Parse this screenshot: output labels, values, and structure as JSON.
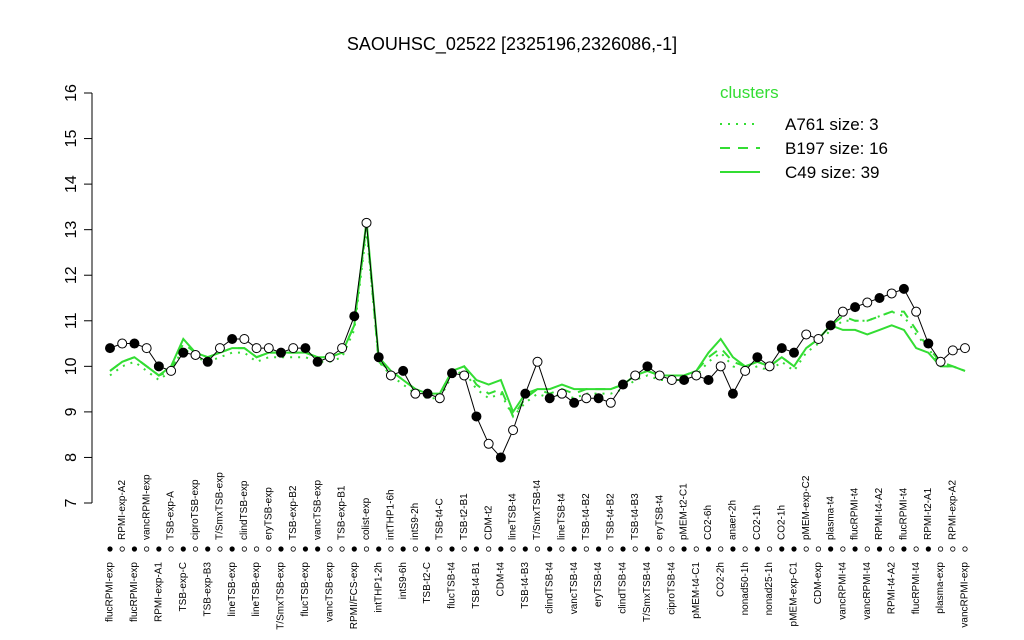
{
  "chart_data": {
    "type": "line",
    "title": "SAOUHSC_02522 [2325196,2326086,-1]",
    "categories": [
      "flucRPMI-exp",
      "RPMI-exp-A2",
      "flucRPMI-exp",
      "vancRPMI-exp",
      "RPMI-exp-A1",
      "TSB-exp-A",
      "TSB-exp-C",
      "ciproTSB-exp",
      "TSB-exp-B3",
      "T/SmxTSB-exp",
      "lineTSB-exp",
      "clindTSB-exp",
      "lineTSB-exp",
      "eryTSB-exp",
      "T/SmxTSB-exp",
      "TSB-exp-B2",
      "flucTSB-exp",
      "vancTSB-exp",
      "vancTSB-exp",
      "TSB-exp-B1",
      "RPMI/FCS-exp",
      "colist-exp",
      "intTHP1-2h",
      "intTHP1-6h",
      "intS9-6h",
      "intS9-2h",
      "TSB-t2-C",
      "TSB-t4-C",
      "flucTSB-t4",
      "TSB-t2-B1",
      "TSB-t4-B1",
      "CDM-t2",
      "CDM-t4",
      "lineTSB-t4",
      "TSB-t4-B3",
      "T/SmxTSB-t4",
      "clindTSB-t4",
      "lineTSB-t4",
      "vancTSB-t4",
      "TSB-t4-B2",
      "eryTSB-t4",
      "TSB-t4-B2",
      "clindTSB-t4",
      "TSB-t4-B3",
      "T/SmxTSB-t4",
      "eryTSB-t4",
      "ciproTSB-t4",
      "pMEM-t2-C1",
      "pMEM-t4-C1",
      "CO2-6h",
      "CO2-2h",
      "anaer-2h",
      "nonad50-1h",
      "CO2-1h",
      "nonad25-1h",
      "CO2-1h",
      "pMEM-exp-C1",
      "pMEM-exp-C2",
      "CDM-exp",
      "plasma-t4",
      "vancRPMI-t4",
      "flucRPMI-t4",
      "vancRPMI-t4",
      "RPMI-t4-A2",
      "RPMI-t4-A2",
      "flucRPMI-t4",
      "flucRPMI-t4",
      "RPMI-t2-A1",
      "plasma-exp",
      "RPMI-exp-A2",
      "vancRPMI-exp"
    ],
    "values": [
      10.4,
      10.5,
      10.5,
      10.4,
      10.0,
      9.9,
      10.3,
      10.25,
      10.1,
      10.4,
      10.6,
      10.6,
      10.4,
      10.4,
      10.3,
      10.4,
      10.4,
      10.1,
      10.2,
      10.4,
      11.1,
      13.15,
      10.2,
      9.8,
      9.9,
      9.4,
      9.4,
      9.3,
      9.85,
      9.8,
      8.9,
      8.3,
      8.0,
      8.6,
      9.4,
      10.1,
      9.3,
      9.4,
      9.2,
      9.3,
      9.3,
      9.2,
      9.6,
      9.8,
      10.0,
      9.8,
      9.7,
      9.7,
      9.8,
      9.7,
      10.0,
      9.4,
      9.9,
      10.2,
      10.0,
      10.4,
      10.3,
      10.7,
      10.6,
      10.9,
      11.2,
      11.3,
      11.4,
      11.5,
      11.6,
      11.7,
      11.2,
      10.5,
      10.1,
      10.35,
      10.4
    ],
    "point_colors": [
      "black",
      "white",
      "black",
      "white",
      "black",
      "white",
      "black",
      "white",
      "black",
      "white",
      "black",
      "white",
      "white",
      "white",
      "black",
      "white",
      "black",
      "black",
      "white",
      "white",
      "black",
      "white",
      "black",
      "white",
      "black",
      "white",
      "black",
      "white",
      "black",
      "white",
      "black",
      "white",
      "black",
      "white",
      "black",
      "white",
      "black",
      "white",
      "black",
      "white",
      "black",
      "white",
      "black",
      "white",
      "black",
      "white",
      "white",
      "black",
      "white",
      "black",
      "white",
      "black",
      "white",
      "black",
      "white",
      "black",
      "black",
      "white",
      "white",
      "black",
      "white",
      "black",
      "white",
      "black",
      "white",
      "black",
      "white",
      "black",
      "white",
      "white",
      "white"
    ],
    "color": "#000000",
    "series": [
      {
        "name": "A761 size: 3",
        "style": "dotted",
        "color": "#33dd33",
        "values": [
          9.8,
          10.0,
          10.1,
          9.9,
          9.7,
          9.9,
          10.4,
          10.2,
          10.1,
          10.2,
          10.3,
          10.3,
          10.1,
          10.2,
          10.2,
          10.2,
          10.2,
          10.1,
          10.1,
          10.2,
          10.8,
          13.0,
          10.1,
          9.8,
          9.6,
          9.4,
          9.3,
          9.3,
          9.8,
          9.9,
          9.5,
          9.3,
          9.4,
          8.9,
          9.2,
          9.4,
          9.3,
          9.4,
          9.3,
          9.4,
          9.4,
          9.4,
          9.5,
          9.7,
          9.8,
          9.7,
          9.7,
          9.7,
          9.8,
          10.1,
          10.3,
          10.0,
          9.9,
          10.0,
          9.9,
          10.1,
          9.9,
          10.3,
          10.5,
          10.8,
          11.0,
          11.0,
          11.0,
          11.1,
          11.2,
          11.1,
          10.7,
          10.4,
          10.0,
          10.0,
          9.9
        ]
      },
      {
        "name": "B197 size: 16",
        "style": "dashed",
        "color": "#33dd33",
        "values": [
          9.9,
          10.1,
          10.2,
          10.0,
          9.8,
          9.9,
          10.5,
          10.3,
          10.2,
          10.3,
          10.4,
          10.4,
          10.2,
          10.3,
          10.3,
          10.3,
          10.3,
          10.2,
          10.2,
          10.3,
          10.9,
          13.1,
          10.1,
          9.9,
          9.7,
          9.5,
          9.4,
          9.4,
          9.9,
          10.0,
          9.6,
          9.4,
          9.5,
          8.9,
          9.3,
          9.5,
          9.4,
          9.5,
          9.4,
          9.5,
          9.5,
          9.5,
          9.6,
          9.8,
          9.9,
          9.8,
          9.8,
          9.8,
          9.9,
          10.2,
          10.4,
          10.1,
          10.0,
          10.1,
          10.0,
          10.2,
          10.0,
          10.4,
          10.6,
          10.9,
          11.1,
          11.0,
          11.0,
          11.1,
          11.2,
          11.2,
          10.8,
          10.4,
          10.1,
          10.0,
          9.9
        ]
      },
      {
        "name": "C49 size: 39",
        "style": "solid",
        "color": "#33dd33",
        "values": [
          9.9,
          10.1,
          10.2,
          10.0,
          9.8,
          10.0,
          10.6,
          10.3,
          10.2,
          10.3,
          10.4,
          10.4,
          10.2,
          10.3,
          10.3,
          10.3,
          10.3,
          10.2,
          10.2,
          10.3,
          10.9,
          13.2,
          10.2,
          9.9,
          9.7,
          9.5,
          9.4,
          9.4,
          9.9,
          10.0,
          9.7,
          9.6,
          9.7,
          9.0,
          9.4,
          9.5,
          9.5,
          9.6,
          9.5,
          9.5,
          9.5,
          9.5,
          9.6,
          9.8,
          9.9,
          9.8,
          9.8,
          9.8,
          9.9,
          10.3,
          10.6,
          10.2,
          10.0,
          10.1,
          10.0,
          10.2,
          10.0,
          10.4,
          10.6,
          10.9,
          10.8,
          10.8,
          10.7,
          10.8,
          10.9,
          10.8,
          10.4,
          10.3,
          10.0,
          10.0,
          9.9
        ]
      }
    ],
    "legend_title": "clusters",
    "legend": "topright",
    "ylim": [
      7,
      16
    ],
    "yticks": [
      7,
      8,
      9,
      10,
      11,
      12,
      13,
      14,
      15,
      16
    ]
  }
}
